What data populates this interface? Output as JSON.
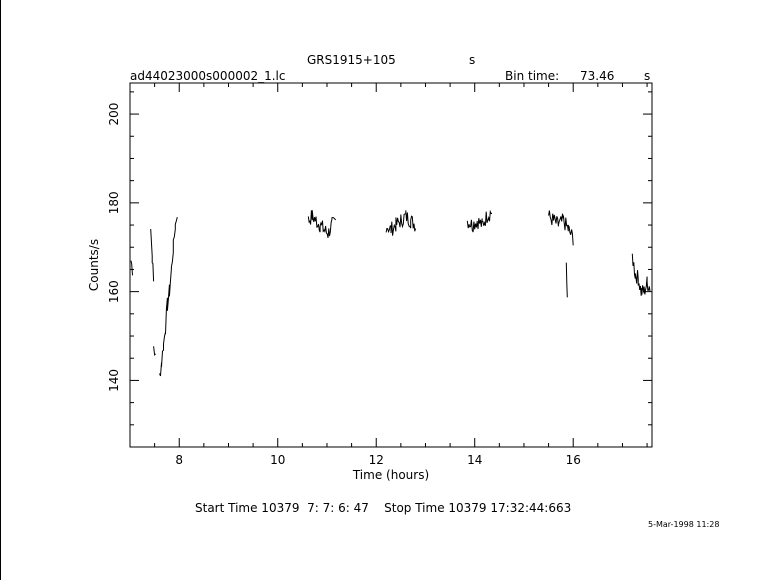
{
  "header": {
    "object": "GRS1915+105",
    "object_unit": "s",
    "filename": "ad44023000s000002_1.lc",
    "bin_time_label": "Bin time:",
    "bin_time_value": "73.46",
    "bin_time_unit": "s"
  },
  "footer": {
    "start_stop": "Start Time 10379  7: 7: 6: 47    Stop Time 10379 17:32:44:663",
    "date_stamp": "5-Mar-1998 11:28"
  },
  "chart_data": {
    "type": "line",
    "title": "GRS1915+105",
    "xlabel": "Time (hours)",
    "ylabel": "Counts/s",
    "xlim": [
      7.0,
      17.6
    ],
    "ylim": [
      125,
      207
    ],
    "xticks": [
      8,
      10,
      12,
      14,
      16
    ],
    "xtick_labels": [
      "8",
      "10",
      "12",
      "14",
      "16"
    ],
    "yticks": [
      140,
      160,
      180,
      200
    ],
    "ytick_labels": [
      "140",
      "160",
      "180",
      "200"
    ],
    "grid": false,
    "series": [
      {
        "color": "#000000",
        "segments": [
          {
            "x": [
              7.02,
              7.05
            ],
            "y": [
              167,
              165
            ]
          },
          {
            "x": [
              7.42,
              7.45,
              7.48
            ],
            "y": [
              175,
              168,
              162
            ]
          },
          {
            "x": [
              7.48,
              7.52
            ],
            "y": [
              148,
              145
            ]
          },
          {
            "x": [
              7.6,
              7.64,
              7.68,
              7.72,
              7.76,
              7.8,
              7.84,
              7.88,
              7.92,
              7.96
            ],
            "y": [
              141,
              144,
              148,
              152,
              157,
              160,
              165,
              170,
              175,
              178
            ]
          },
          {
            "x": [
              10.62,
              10.7,
              10.78,
              10.86,
              10.94,
              11.02,
              11.1,
              11.18
            ],
            "y": [
              176,
              177,
              176,
              175,
              174,
              173,
              175,
              176
            ]
          },
          {
            "x": [
              12.2,
              12.3,
              12.4,
              12.5,
              12.6,
              12.7,
              12.8
            ],
            "y": [
              175,
              174,
              175,
              176,
              177,
              176,
              175
            ]
          },
          {
            "x": [
              13.85,
              13.95,
              14.05,
              14.15,
              14.25,
              14.35
            ],
            "y": [
              176,
              175,
              176,
              175,
              177,
              178
            ]
          },
          {
            "x": [
              15.5,
              15.6,
              15.7,
              15.8,
              15.9,
              16.0
            ],
            "y": [
              177,
              176,
              175,
              176,
              174,
              172
            ]
          },
          {
            "x": [
              15.86,
              15.88
            ],
            "y": [
              167,
              157
            ]
          },
          {
            "x": [
              17.2,
              17.26,
              17.32,
              17.38,
              17.44,
              17.5,
              17.56
            ],
            "y": [
              168,
              164,
              163,
              160,
              160,
              162,
              161
            ]
          }
        ]
      }
    ]
  }
}
